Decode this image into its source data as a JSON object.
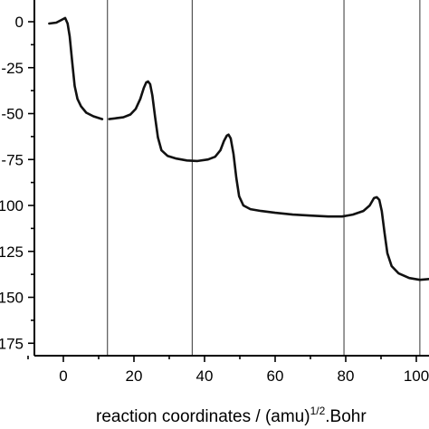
{
  "chart_data": {
    "type": "line",
    "title": "",
    "xlabel": "reaction coordinates / (amu)",
    "xlabel_sup": "1/2",
    "xlabel_suffix": ".Bohr",
    "ylabel": "",
    "xlim": [
      -8,
      108
    ],
    "ylim": [
      -180,
      12
    ],
    "x_ticks": [
      0,
      20,
      40,
      60,
      80,
      100
    ],
    "x_tick_labels": [
      "0",
      "20",
      "40",
      "60",
      "80",
      "100"
    ],
    "y_ticks": [
      0,
      -25,
      -50,
      -75,
      -100,
      -125,
      -150,
      -175
    ],
    "y_tick_labels": [
      "0",
      "-25",
      "-50",
      "-75",
      "-100",
      "-125",
      "-150",
      "-175"
    ],
    "grid": false,
    "vertical_dividers": [
      12.5,
      36.5,
      79.5,
      101
    ],
    "series": [
      {
        "name": "",
        "segments": [
          [
            [
              -4,
              -1
            ],
            [
              -2,
              -0.5
            ],
            [
              -0.5,
              1
            ],
            [
              0.5,
              2
            ],
            [
              1.2,
              -1
            ],
            [
              1.8,
              -8
            ],
            [
              2.5,
              -22
            ],
            [
              3.2,
              -35
            ],
            [
              4,
              -42
            ],
            [
              5,
              -46
            ],
            [
              6.5,
              -49.5
            ],
            [
              8.5,
              -51.5
            ],
            [
              11,
              -53
            ]
          ],
          [
            [
              13,
              -53
            ],
            [
              15,
              -52.5
            ],
            [
              17,
              -52
            ],
            [
              19,
              -50.5
            ],
            [
              20.5,
              -47.5
            ],
            [
              21.8,
              -42
            ],
            [
              22.8,
              -36
            ],
            [
              23.5,
              -33
            ],
            [
              24,
              -32.5
            ],
            [
              24.6,
              -34
            ],
            [
              25.2,
              -40
            ],
            [
              26,
              -52
            ],
            [
              26.8,
              -63
            ],
            [
              27.8,
              -70
            ],
            [
              29.5,
              -73
            ],
            [
              32,
              -74.5
            ],
            [
              35,
              -75.5
            ],
            [
              38,
              -75.8
            ],
            [
              41,
              -75
            ],
            [
              43,
              -73.5
            ],
            [
              44.5,
              -70
            ],
            [
              45.5,
              -65
            ],
            [
              46.3,
              -62
            ],
            [
              46.8,
              -61.5
            ],
            [
              47.4,
              -63.5
            ],
            [
              48.2,
              -72
            ],
            [
              49,
              -85
            ],
            [
              49.8,
              -95
            ],
            [
              51,
              -100
            ],
            [
              53,
              -102
            ],
            [
              56,
              -103
            ],
            [
              60,
              -104
            ],
            [
              65,
              -105
            ],
            [
              70,
              -105.5
            ],
            [
              75,
              -106
            ],
            [
              79,
              -106
            ],
            [
              82,
              -105
            ],
            [
              85,
              -103
            ],
            [
              86.8,
              -100
            ],
            [
              88,
              -96
            ],
            [
              88.8,
              -95.5
            ],
            [
              89.5,
              -97
            ],
            [
              90.2,
              -103
            ],
            [
              91,
              -115
            ],
            [
              91.8,
              -126
            ],
            [
              93,
              -133
            ],
            [
              95,
              -137
            ],
            [
              98,
              -139.5
            ],
            [
              101,
              -140.5
            ],
            [
              104,
              -140
            ],
            [
              106,
              -139
            ]
          ]
        ]
      }
    ]
  }
}
